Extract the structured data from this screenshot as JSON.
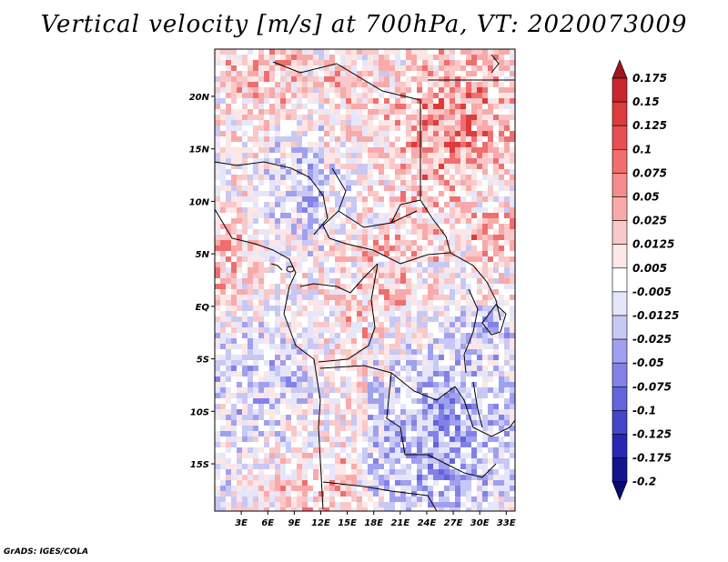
{
  "title": "Vertical velocity [m/s] at 700hPa, VT: 2020073009",
  "footer": "GrADS: IGES/COLA",
  "map": {
    "lon_range": [
      0,
      34
    ],
    "lat_range": [
      -19.5,
      24.5
    ],
    "lon_ticks": [
      "3E",
      "6E",
      "9E",
      "12E",
      "15E",
      "18E",
      "21E",
      "24E",
      "27E",
      "30E",
      "33E"
    ],
    "lon_tick_values": [
      3,
      6,
      9,
      12,
      15,
      18,
      21,
      24,
      27,
      30,
      33
    ],
    "lat_ticks": [
      "20N",
      "15N",
      "10N",
      "5N",
      "EQ",
      "5S",
      "10S",
      "15S"
    ],
    "lat_tick_values": [
      20,
      15,
      10,
      5,
      0,
      -5,
      -10,
      -15
    ]
  },
  "colorbar": {
    "labels": [
      "0.175",
      "0.15",
      "0.125",
      "0.1",
      "0.075",
      "0.05",
      "0.025",
      "0.0125",
      "0.005",
      "-0.005",
      "-0.0125",
      "-0.025",
      "-0.05",
      "-0.075",
      "-0.1",
      "-0.125",
      "-0.175",
      "-0.2"
    ],
    "colors": [
      "#a0141e",
      "#c8282d",
      "#dc3c3c",
      "#e65050",
      "#f06e6e",
      "#f58c8c",
      "#f8aaaa",
      "#fac8c8",
      "#fde6e6",
      "#ffffff",
      "#e6e6fa",
      "#c8c8f5",
      "#a0a0f0",
      "#8282e6",
      "#6464dc",
      "#4646c8",
      "#2828b4",
      "#14148c",
      "#0a0a6e"
    ]
  }
}
